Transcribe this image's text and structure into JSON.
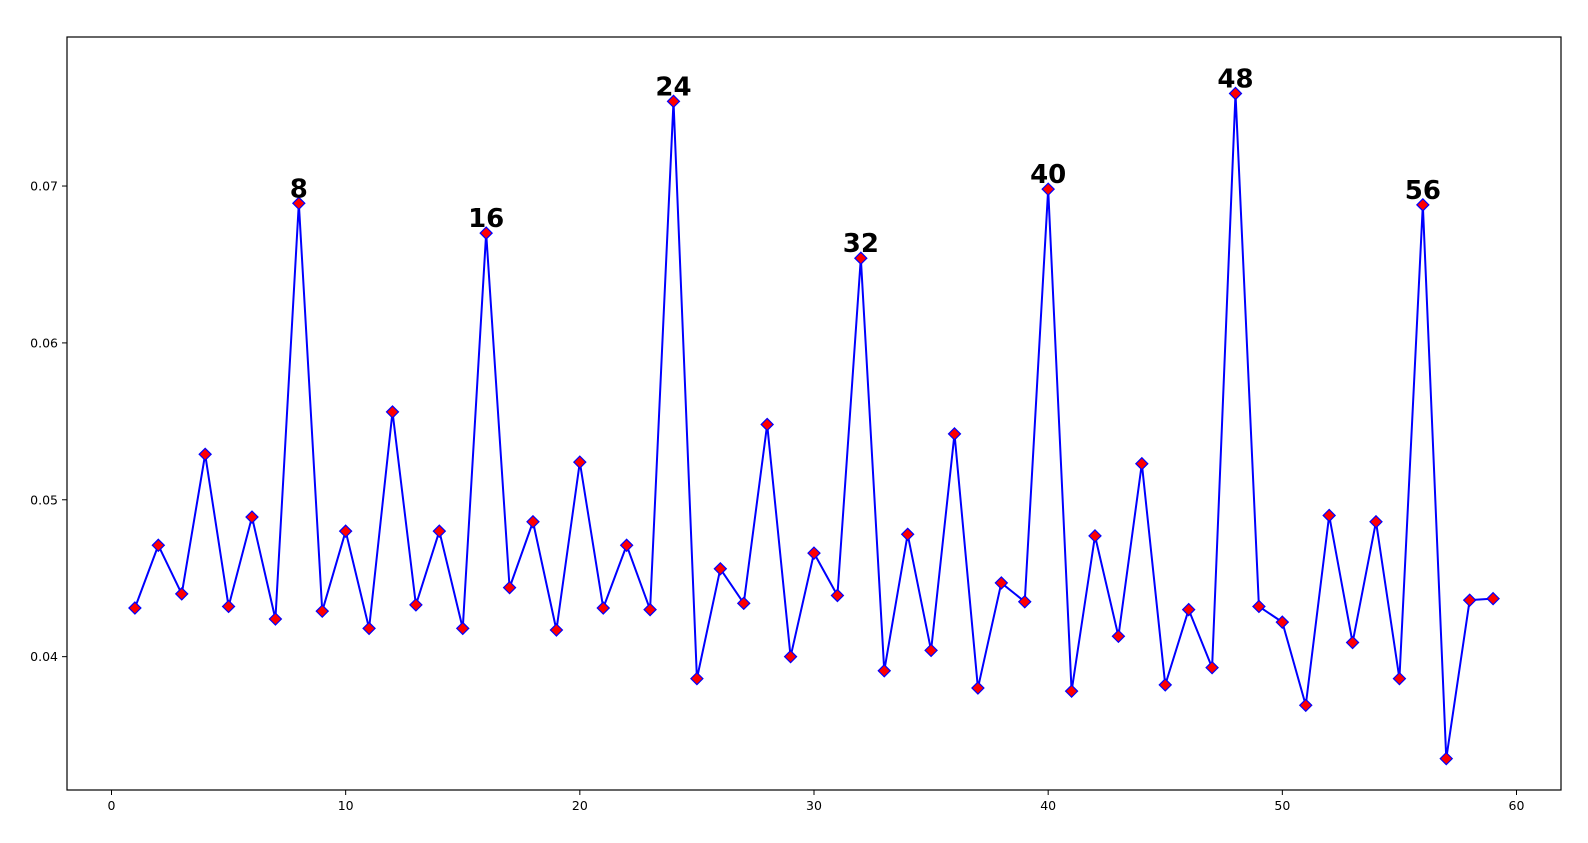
{
  "chart_data": {
    "type": "line",
    "title": "",
    "xlabel": "",
    "ylabel": "",
    "xlim": [
      -1.9,
      61.9
    ],
    "ylim": [
      0.0315,
      0.0795
    ],
    "xticks": [
      0,
      10,
      20,
      30,
      40,
      50,
      60
    ],
    "yticks": [
      0.04,
      0.05,
      0.06,
      0.07
    ],
    "xtick_labels": [
      "0",
      "10",
      "20",
      "30",
      "40",
      "50",
      "60"
    ],
    "ytick_labels": [
      "0.04",
      "0.05",
      "0.06",
      "0.07"
    ],
    "grid": false,
    "line_color": "#0000ff",
    "marker": "diamond",
    "marker_face_color": "#ff0000",
    "marker_edge_color": "#0000ff",
    "x": [
      1,
      2,
      3,
      4,
      5,
      6,
      7,
      8,
      9,
      10,
      11,
      12,
      13,
      14,
      15,
      16,
      17,
      18,
      19,
      20,
      21,
      22,
      23,
      24,
      25,
      26,
      27,
      28,
      29,
      30,
      31,
      32,
      33,
      34,
      35,
      36,
      37,
      38,
      39,
      40,
      41,
      42,
      43,
      44,
      45,
      46,
      47,
      48,
      49,
      50,
      51,
      52,
      53,
      54,
      55,
      56,
      57,
      58,
      59
    ],
    "y": [
      0.0431,
      0.0471,
      0.044,
      0.0529,
      0.0432,
      0.0489,
      0.0424,
      0.0689,
      0.0429,
      0.048,
      0.0418,
      0.0556,
      0.0433,
      0.048,
      0.0418,
      0.067,
      0.0444,
      0.0486,
      0.0417,
      0.0524,
      0.0431,
      0.0471,
      0.043,
      0.0754,
      0.0386,
      0.0456,
      0.0434,
      0.0548,
      0.04,
      0.0466,
      0.0439,
      0.0654,
      0.0391,
      0.0478,
      0.0404,
      0.0542,
      0.038,
      0.0447,
      0.0435,
      0.0698,
      0.0378,
      0.0477,
      0.0413,
      0.0523,
      0.0382,
      0.043,
      0.0393,
      0.0759,
      0.0432,
      0.0422,
      0.0369,
      0.049,
      0.0409,
      0.0486,
      0.0386,
      0.0688,
      0.0335,
      0.0436,
      0.0437
    ],
    "annotations": [
      {
        "x": 8,
        "y": 0.0689,
        "text": "8"
      },
      {
        "x": 16,
        "y": 0.067,
        "text": "16"
      },
      {
        "x": 24,
        "y": 0.0754,
        "text": "24"
      },
      {
        "x": 32,
        "y": 0.0654,
        "text": "32"
      },
      {
        "x": 40,
        "y": 0.0698,
        "text": "40"
      },
      {
        "x": 48,
        "y": 0.0759,
        "text": "48"
      },
      {
        "x": 56,
        "y": 0.0688,
        "text": "56"
      }
    ]
  }
}
